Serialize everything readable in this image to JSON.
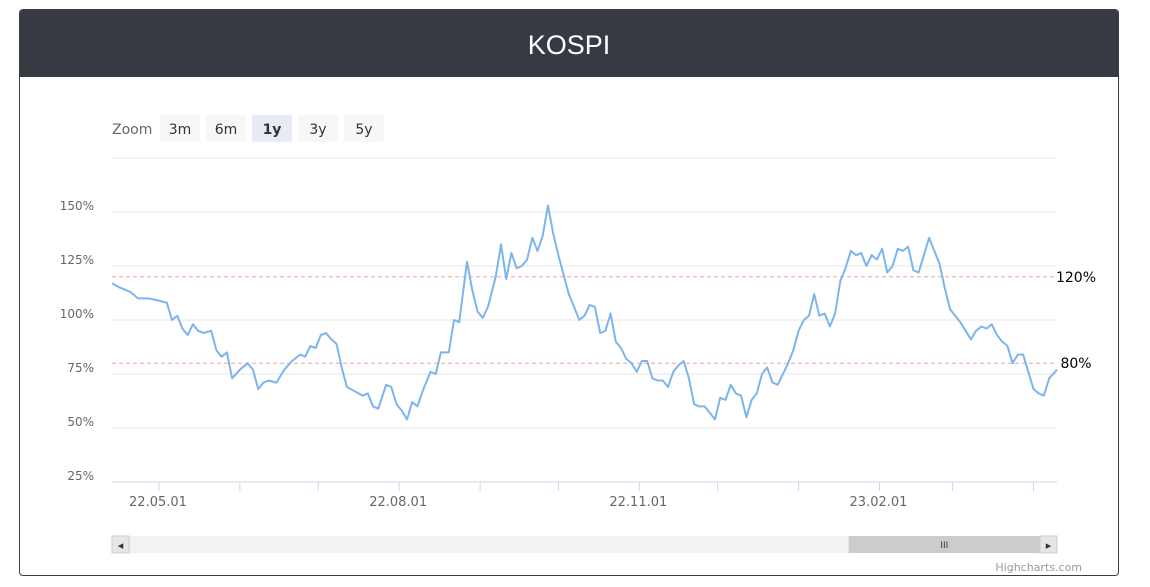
{
  "header": {
    "title": "KOSPI"
  },
  "zoom": {
    "label": "Zoom",
    "buttons": [
      {
        "label": "3m",
        "selected": false
      },
      {
        "label": "6m",
        "selected": false
      },
      {
        "label": "1y",
        "selected": true
      },
      {
        "label": "3y",
        "selected": false
      },
      {
        "label": "5y",
        "selected": false
      }
    ]
  },
  "credits": "Highcharts.com",
  "navigator": {
    "handle_glyph": "III",
    "left_arrow": "◂",
    "right_arrow": "▸",
    "scroll_start": 0.79,
    "scroll_end": 1.0
  },
  "colors": {
    "series": "#7cb5ec",
    "plotline": "#f4a0a0",
    "grid": "#e6e6e6",
    "header": "#373a42",
    "selected_button": "#e6ebf5",
    "button": "#f7f7f7"
  },
  "chart_data": {
    "type": "line",
    "ylim": [
      25,
      150
    ],
    "yticks": [
      {
        "value": 25,
        "label": "25%"
      },
      {
        "value": 50,
        "label": "50%"
      },
      {
        "value": 75,
        "label": "75%"
      },
      {
        "value": 100,
        "label": "100%"
      },
      {
        "value": 125,
        "label": "125%"
      },
      {
        "value": 150,
        "label": "150%"
      }
    ],
    "xlim": [
      "2022-04-13",
      "2023-04-10"
    ],
    "xticks": [
      {
        "date": "2022-05-01",
        "label": "22.05.01"
      },
      {
        "date": "2022-08-01",
        "label": "22.08.01"
      },
      {
        "date": "2022-11-01",
        "label": "22.11.01"
      },
      {
        "date": "2023-02-01",
        "label": "23.02.01"
      }
    ],
    "minor_ticks": [
      "2022-06-01",
      "2022-07-01",
      "2022-09-01",
      "2022-10-01",
      "2022-12-01",
      "2023-01-01",
      "2023-03-01",
      "2023-04-01"
    ],
    "plot_lines": [
      {
        "value": 120,
        "label": "120%"
      },
      {
        "value": 80,
        "label": "80%"
      }
    ],
    "grid": true,
    "series": [
      {
        "points": [
          [
            "2022-04-13",
            117
          ],
          [
            "2022-04-16",
            115
          ],
          [
            "2022-04-20",
            113
          ],
          [
            "2022-04-23",
            110
          ],
          [
            "2022-04-27",
            110
          ],
          [
            "2022-05-01",
            109
          ],
          [
            "2022-05-04",
            108
          ],
          [
            "2022-05-06",
            100
          ],
          [
            "2022-05-08",
            102
          ],
          [
            "2022-05-10",
            96
          ],
          [
            "2022-05-12",
            93
          ],
          [
            "2022-05-14",
            98
          ],
          [
            "2022-05-16",
            95
          ],
          [
            "2022-05-18",
            94
          ],
          [
            "2022-05-21",
            95
          ],
          [
            "2022-05-23",
            86
          ],
          [
            "2022-05-25",
            83
          ],
          [
            "2022-05-27",
            85
          ],
          [
            "2022-05-29",
            73
          ],
          [
            "2022-06-01",
            77
          ],
          [
            "2022-06-04",
            80
          ],
          [
            "2022-06-06",
            77
          ],
          [
            "2022-06-08",
            68
          ],
          [
            "2022-06-10",
            71
          ],
          [
            "2022-06-12",
            72
          ],
          [
            "2022-06-15",
            71
          ],
          [
            "2022-06-18",
            77
          ],
          [
            "2022-06-21",
            81
          ],
          [
            "2022-06-24",
            84
          ],
          [
            "2022-06-26",
            83
          ],
          [
            "2022-06-28",
            88
          ],
          [
            "2022-06-30",
            87
          ],
          [
            "2022-07-02",
            93
          ],
          [
            "2022-07-04",
            94
          ],
          [
            "2022-07-06",
            91
          ],
          [
            "2022-07-08",
            89
          ],
          [
            "2022-07-10",
            78
          ],
          [
            "2022-07-12",
            69
          ],
          [
            "2022-07-15",
            67
          ],
          [
            "2022-07-18",
            65
          ],
          [
            "2022-07-20",
            66
          ],
          [
            "2022-07-22",
            60
          ],
          [
            "2022-07-24",
            59
          ],
          [
            "2022-07-27",
            70
          ],
          [
            "2022-07-29",
            69
          ],
          [
            "2022-07-31",
            61
          ],
          [
            "2022-08-02",
            58
          ],
          [
            "2022-08-04",
            54
          ],
          [
            "2022-08-06",
            62
          ],
          [
            "2022-08-08",
            60
          ],
          [
            "2022-08-10",
            67
          ],
          [
            "2022-08-13",
            76
          ],
          [
            "2022-08-15",
            75
          ],
          [
            "2022-08-17",
            85
          ],
          [
            "2022-08-20",
            85
          ],
          [
            "2022-08-22",
            100
          ],
          [
            "2022-08-24",
            99
          ],
          [
            "2022-08-27",
            127
          ],
          [
            "2022-08-29",
            114
          ],
          [
            "2022-08-31",
            104
          ],
          [
            "2022-09-02",
            101
          ],
          [
            "2022-09-04",
            106
          ],
          [
            "2022-09-07",
            120
          ],
          [
            "2022-09-09",
            135
          ],
          [
            "2022-09-11",
            119
          ],
          [
            "2022-09-13",
            131
          ],
          [
            "2022-09-15",
            124
          ],
          [
            "2022-09-17",
            125
          ],
          [
            "2022-09-19",
            128
          ],
          [
            "2022-09-21",
            138
          ],
          [
            "2022-09-23",
            132
          ],
          [
            "2022-09-25",
            139
          ],
          [
            "2022-09-27",
            153
          ],
          [
            "2022-09-29",
            140
          ],
          [
            "2022-10-01",
            130
          ],
          [
            "2022-10-03",
            121
          ],
          [
            "2022-10-05",
            112
          ],
          [
            "2022-10-07",
            106
          ],
          [
            "2022-10-09",
            100
          ],
          [
            "2022-10-11",
            102
          ],
          [
            "2022-10-13",
            107
          ],
          [
            "2022-10-15",
            106
          ],
          [
            "2022-10-17",
            94
          ],
          [
            "2022-10-19",
            95
          ],
          [
            "2022-10-21",
            103
          ],
          [
            "2022-10-23",
            90
          ],
          [
            "2022-10-25",
            87
          ],
          [
            "2022-10-27",
            82
          ],
          [
            "2022-10-29",
            80
          ],
          [
            "2022-10-31",
            76
          ],
          [
            "2022-11-02",
            81
          ],
          [
            "2022-11-04",
            81
          ],
          [
            "2022-11-06",
            73
          ],
          [
            "2022-11-08",
            72
          ],
          [
            "2022-11-10",
            72
          ],
          [
            "2022-11-12",
            69
          ],
          [
            "2022-11-14",
            76
          ],
          [
            "2022-11-16",
            79
          ],
          [
            "2022-11-18",
            81
          ],
          [
            "2022-11-20",
            73
          ],
          [
            "2022-11-22",
            61
          ],
          [
            "2022-11-24",
            60
          ],
          [
            "2022-11-26",
            60
          ],
          [
            "2022-11-28",
            57
          ],
          [
            "2022-11-30",
            54
          ],
          [
            "2022-12-02",
            64
          ],
          [
            "2022-12-04",
            63
          ],
          [
            "2022-12-06",
            70
          ],
          [
            "2022-12-08",
            66
          ],
          [
            "2022-12-10",
            65
          ],
          [
            "2022-12-12",
            55
          ],
          [
            "2022-12-14",
            63
          ],
          [
            "2022-12-16",
            66
          ],
          [
            "2022-12-18",
            75
          ],
          [
            "2022-12-20",
            78
          ],
          [
            "2022-12-22",
            71
          ],
          [
            "2022-12-24",
            70
          ],
          [
            "2022-12-26",
            75
          ],
          [
            "2022-12-28",
            80
          ],
          [
            "2022-12-30",
            86
          ],
          [
            "2023-01-01",
            95
          ],
          [
            "2023-01-03",
            100
          ],
          [
            "2023-01-05",
            102
          ],
          [
            "2023-01-07",
            112
          ],
          [
            "2023-01-09",
            102
          ],
          [
            "2023-01-11",
            103
          ],
          [
            "2023-01-13",
            97
          ],
          [
            "2023-01-15",
            103
          ],
          [
            "2023-01-17",
            118
          ],
          [
            "2023-01-19",
            124
          ],
          [
            "2023-01-21",
            132
          ],
          [
            "2023-01-23",
            130
          ],
          [
            "2023-01-25",
            131
          ],
          [
            "2023-01-27",
            125
          ],
          [
            "2023-01-29",
            130
          ],
          [
            "2023-01-31",
            128
          ],
          [
            "2023-02-02",
            133
          ],
          [
            "2023-02-04",
            122
          ],
          [
            "2023-02-06",
            125
          ],
          [
            "2023-02-08",
            133
          ],
          [
            "2023-02-10",
            132
          ],
          [
            "2023-02-12",
            134
          ],
          [
            "2023-02-14",
            123
          ],
          [
            "2023-02-16",
            122
          ],
          [
            "2023-02-18",
            130
          ],
          [
            "2023-02-20",
            138
          ],
          [
            "2023-02-22",
            132
          ],
          [
            "2023-02-24",
            126
          ],
          [
            "2023-02-26",
            115
          ],
          [
            "2023-02-28",
            105
          ],
          [
            "2023-03-02",
            102
          ],
          [
            "2023-03-04",
            99
          ],
          [
            "2023-03-06",
            95
          ],
          [
            "2023-03-08",
            91
          ],
          [
            "2023-03-10",
            95
          ],
          [
            "2023-03-12",
            97
          ],
          [
            "2023-03-14",
            96
          ],
          [
            "2023-03-16",
            98
          ],
          [
            "2023-03-18",
            93
          ],
          [
            "2023-03-20",
            90
          ],
          [
            "2023-03-22",
            88
          ],
          [
            "2023-03-24",
            80
          ],
          [
            "2023-03-26",
            84
          ],
          [
            "2023-03-28",
            84
          ],
          [
            "2023-03-30",
            76
          ],
          [
            "2023-04-01",
            68
          ],
          [
            "2023-04-03",
            66
          ],
          [
            "2023-04-05",
            65
          ],
          [
            "2023-04-07",
            73
          ],
          [
            "2023-04-10",
            77
          ]
        ]
      }
    ]
  }
}
